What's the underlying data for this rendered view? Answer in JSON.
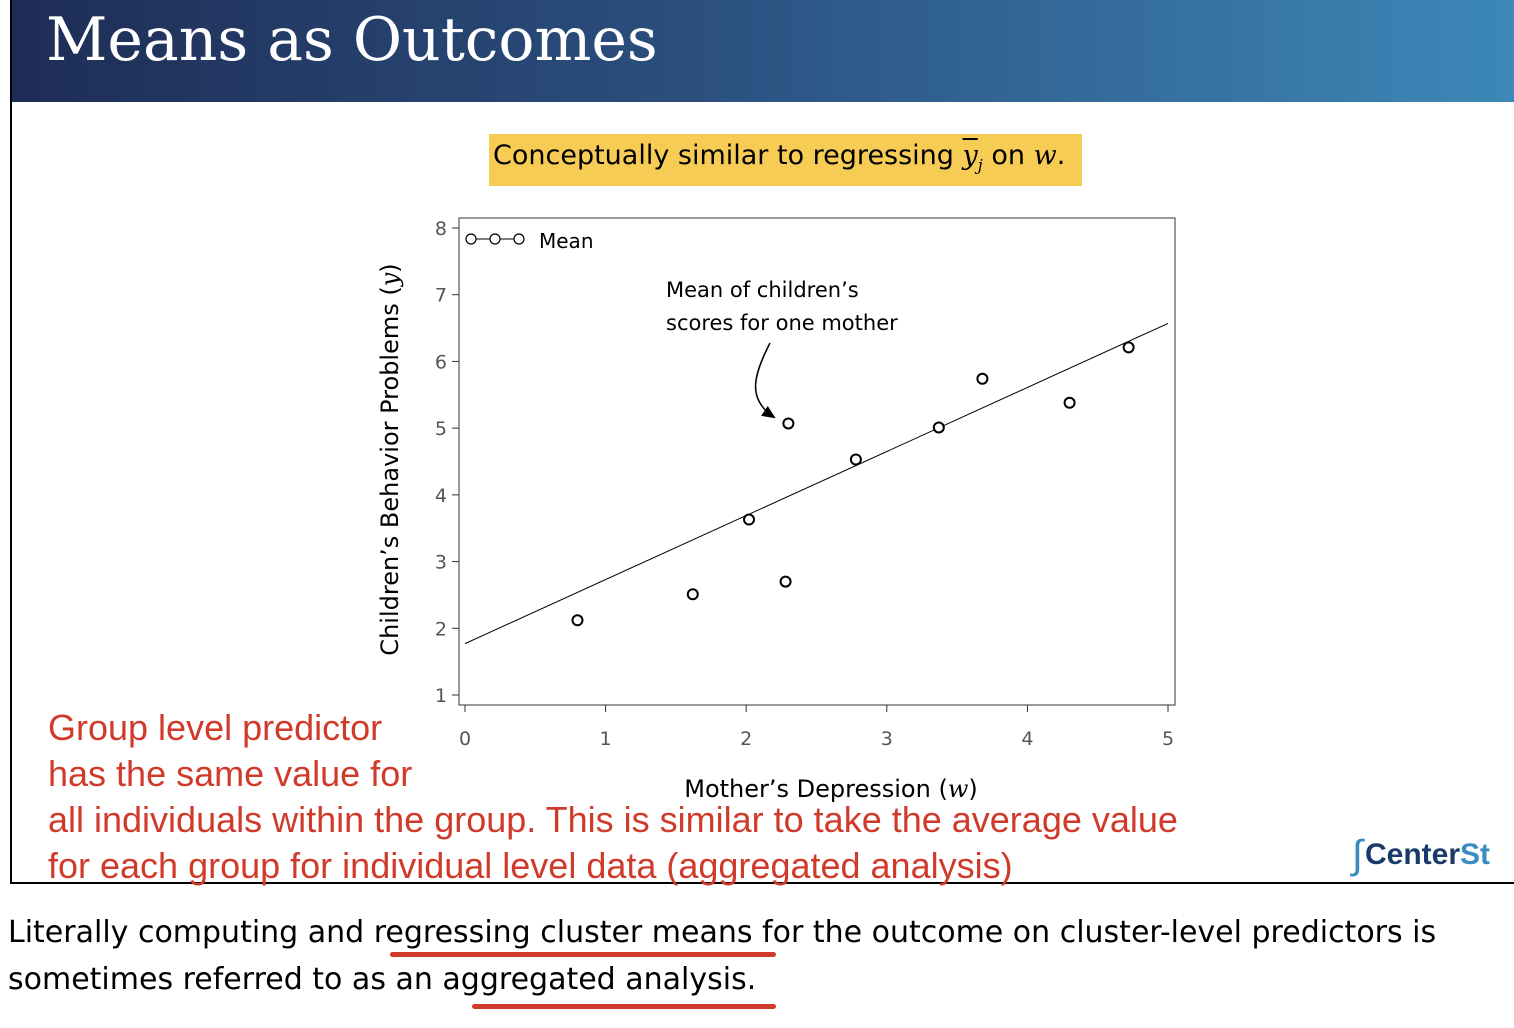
{
  "slide": {
    "title": "Means as Outcomes",
    "highlight": {
      "prefix": "Conceptually similar to regressing ",
      "ybar": "y",
      "sub": "j",
      "middle": " on ",
      "w": "w",
      "suffix": "."
    },
    "red_note": [
      "Group level predictor",
      "has the same value for",
      "all individuals within the group. This is similar to take the average value",
      "for each group for individual level data (aggregated analysis)"
    ],
    "logo": {
      "symbol": "∫",
      "text": "Center",
      "accent": "St"
    }
  },
  "bottom": {
    "line1_a": "Literally computing and ",
    "line1_u": "regressing cluster means",
    "line1_b": " for the outcome on cluster-level predictors is",
    "line2_a": "sometimes referred to as an ",
    "line2_u": "aggregated analysis."
  },
  "colors": {
    "accent_red": "#d03a2a",
    "highlight": "#f7cc55",
    "header_start": "#1e2d55",
    "header_end": "#3d88b8"
  },
  "chart_data": {
    "type": "scatter",
    "title": "",
    "xlabel": "Mother’s Depression (",
    "xlabel_var": "w",
    "xlabel_close": ")",
    "ylabel": "Children’s Behavior Problems (",
    "ylabel_var": "y",
    "ylabel_close": ")",
    "xlim": [
      0,
      5
    ],
    "ylim": [
      1,
      8
    ],
    "xticks": [
      0,
      1,
      2,
      3,
      4,
      5
    ],
    "yticks": [
      1,
      2,
      3,
      4,
      5,
      6,
      7,
      8
    ],
    "grid": false,
    "legend": {
      "position": "top-left",
      "entries": [
        "Mean"
      ]
    },
    "series": [
      {
        "name": "Mean",
        "points": [
          {
            "x": 0.8,
            "y": 2.12
          },
          {
            "x": 1.62,
            "y": 2.51
          },
          {
            "x": 2.02,
            "y": 3.63
          },
          {
            "x": 2.28,
            "y": 2.7
          },
          {
            "x": 2.3,
            "y": 5.07
          },
          {
            "x": 2.78,
            "y": 4.53
          },
          {
            "x": 3.37,
            "y": 5.01
          },
          {
            "x": 3.68,
            "y": 5.74
          },
          {
            "x": 4.3,
            "y": 5.38
          },
          {
            "x": 4.72,
            "y": 6.21
          }
        ]
      }
    ],
    "fit_line": {
      "x": [
        0,
        5
      ],
      "y": [
        1.77,
        6.57
      ]
    },
    "annotation": {
      "lines": [
        "Mean of children’s",
        "scores for one mother"
      ],
      "target": {
        "x": 2.3,
        "y": 5.07
      }
    }
  }
}
